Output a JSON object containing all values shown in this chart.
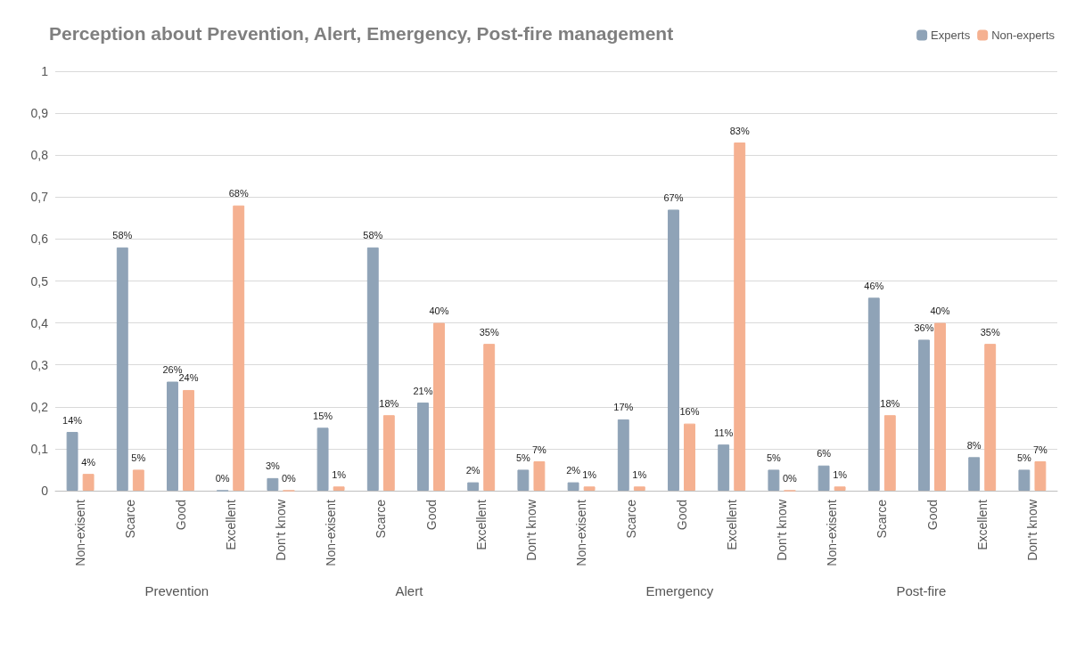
{
  "chart_data": {
    "type": "bar",
    "title": "Perception about Prevention, Alert, Emergency, Post-fire management",
    "categories": [
      "Non-exisent",
      "Scarce",
      "Good",
      "Excellent",
      "Don't know",
      "Non-exisent",
      "Scarce",
      "Good",
      "Excellent",
      "Don't know",
      "Non-exisent",
      "Scarce",
      "Good",
      "Excellent",
      "Don't know",
      "Non-exisent",
      "Scarce",
      "Good",
      "Excellent",
      "Don't know"
    ],
    "series": [
      {
        "name": "Experts",
        "color": "#8fa3b7",
        "values": [
          0.14,
          0.58,
          0.26,
          0,
          0.03,
          0.15,
          0.58,
          0.21,
          0.02,
          0.05,
          0.02,
          0.17,
          0.67,
          0.11,
          0.05,
          0.06,
          0.46,
          0.36,
          0.08,
          0.05
        ],
        "value_labels": [
          "14%",
          "58%",
          "26%",
          "0%",
          "3%",
          "15%",
          "58%",
          "21%",
          "2%",
          "5%",
          "2%",
          "17%",
          "67%",
          "11%",
          "5%",
          "6%",
          "46%",
          "36%",
          "8%",
          "5%"
        ]
      },
      {
        "name": "Non-experts",
        "color": "#f5b191",
        "values": [
          0.04,
          0.05,
          0.24,
          0.68,
          0,
          0.01,
          0.18,
          0.4,
          0.35,
          0.07,
          0.01,
          0.01,
          0.16,
          0.83,
          0,
          0.01,
          0.18,
          0.4,
          0.35,
          0.07
        ],
        "value_labels": [
          "4%",
          "5%",
          "24%",
          "68%",
          "0%",
          "1%",
          "18%",
          "40%",
          "35%",
          "7%",
          "1%",
          "1%",
          "16%",
          "83%",
          "0%",
          "1%",
          "18%",
          "40%",
          "35%",
          "7%"
        ]
      }
    ],
    "annotations": [
      "Prevention",
      "Alert",
      "Emergency",
      "Post-fire"
    ],
    "ylim": [
      0,
      1
    ],
    "yticks": [
      0,
      {
        "value": 0.1,
        "label": "0,1"
      },
      {
        "value": 0.2,
        "label": "0,2"
      },
      {
        "value": 0.3,
        "label": "0,3"
      },
      {
        "value": 0.4,
        "label": "0,4"
      },
      {
        "value": 0.5,
        "label": "0,5"
      },
      {
        "value": 0.6,
        "label": "0,6"
      },
      {
        "value": 0.7,
        "label": "0,7"
      },
      {
        "value": 0.8,
        "label": "0,8"
      },
      {
        "value": 0.9,
        "label": "0,9"
      },
      1
    ],
    "grid": "y",
    "legend": "top right"
  }
}
